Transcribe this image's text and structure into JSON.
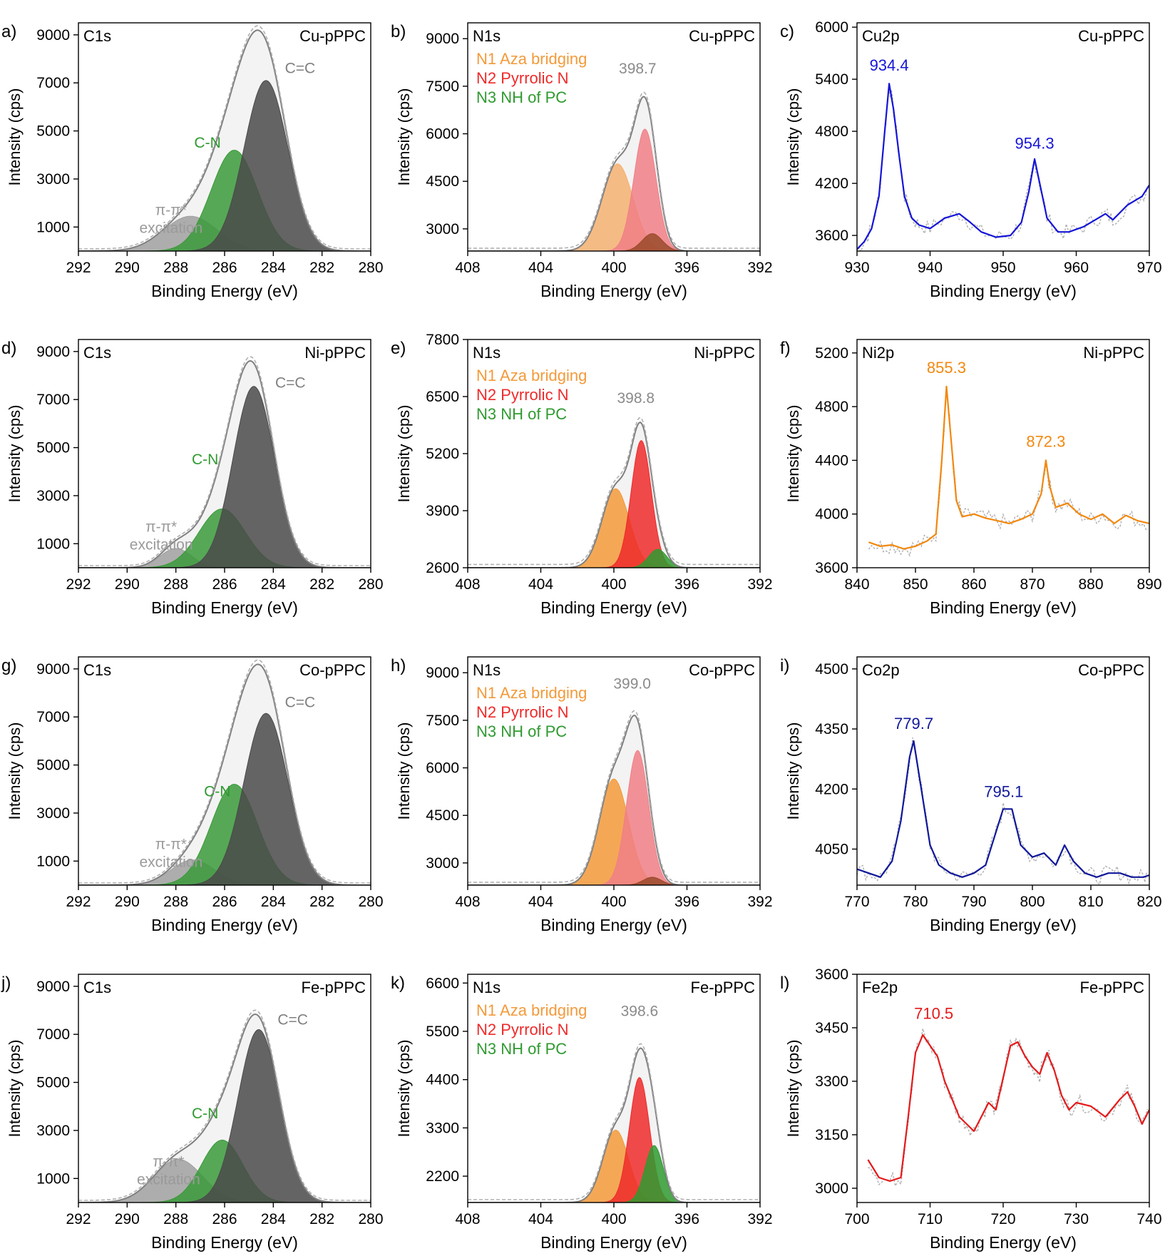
{
  "figure": {
    "colors": {
      "gray_dark": "#4a4a4a",
      "gray_light": "#9a9a9a",
      "green": "#2f9a30",
      "orange": "#f39a3a",
      "red": "#ee2a2a",
      "pink": "#f07f86",
      "blue": "#1515d8",
      "navy": "#10189a",
      "orange_line": "#f2880f",
      "red_line": "#e51a1a",
      "envelope": "#808080",
      "raw": "#b0b0b0"
    }
  },
  "chart_data": [
    {
      "type": "area",
      "panel_label": "a)",
      "title": "C1s",
      "sample": "Cu-pPPC",
      "xlabel": "Binding Energy (eV)",
      "ylabel": "Intensity (cps)",
      "xlim": [
        292,
        280
      ],
      "ylim": [
        0,
        9500
      ],
      "xticks": [
        "292",
        "290",
        "288",
        "286",
        "284",
        "282",
        "280"
      ],
      "yticks": [
        "1000",
        "3000",
        "5000",
        "7000",
        "9000"
      ],
      "baseline": 0,
      "components": [
        {
          "center": 287.4,
          "height": 1450,
          "width": 1.1,
          "color": "#a0a0a0"
        },
        {
          "center": 285.6,
          "height": 4200,
          "width": 0.95,
          "color": "#3a9a3a"
        },
        {
          "center": 284.3,
          "height": 7100,
          "width": 0.9,
          "color": "#4a4a4a"
        }
      ],
      "annotations": [
        {
          "text": "C=C",
          "x": 282.9,
          "y": 7400,
          "color": "#808080"
        },
        {
          "text": "C-N",
          "x": 286.7,
          "y": 4300,
          "color": "#2f9a30"
        },
        {
          "text": "π-π*",
          "x": 288.2,
          "y": 1500,
          "color": "#9a9a9a"
        },
        {
          "text": "excitation",
          "x": 288.2,
          "y": 750,
          "color": "#9a9a9a"
        }
      ]
    },
    {
      "type": "area",
      "panel_label": "b)",
      "title": "N1s",
      "sample": "Cu-pPPC",
      "xlabel": "Binding Energy (eV)",
      "ylabel": "Intensity (cps)",
      "xlim": [
        408,
        392
      ],
      "ylim": [
        2300,
        9500
      ],
      "xticks": [
        "408",
        "404",
        "400",
        "396",
        "392"
      ],
      "yticks": [
        "3000",
        "4500",
        "6000",
        "7500",
        "9000"
      ],
      "baseline": 2300,
      "components": [
        {
          "center": 399.8,
          "height": 2750,
          "width": 0.85,
          "color": "#f5b070"
        },
        {
          "center": 398.3,
          "height": 3850,
          "width": 0.6,
          "color": "#f07f86"
        },
        {
          "center": 397.9,
          "height": 550,
          "width": 0.55,
          "color": "#9a4a2a"
        }
      ],
      "legend": [
        {
          "text": "N1 Aza bridging",
          "color": "#f39a3a"
        },
        {
          "text": "N2 Pyrrolic N",
          "color": "#ee2a2a"
        },
        {
          "text": "N3 NH of PC",
          "color": "#2f9a30"
        }
      ],
      "peak_label": {
        "text": "398.7",
        "x": 398.7,
        "y": 7900,
        "color": "#8a8a8a"
      }
    },
    {
      "type": "line",
      "panel_label": "c)",
      "title": "Cu2p",
      "sample": "Cu-pPPC",
      "xlabel": "Binding Energy (eV)",
      "ylabel": "Intensity (cps)",
      "xlim": [
        930,
        970
      ],
      "ylim": [
        3420,
        6050
      ],
      "xticks": [
        "930",
        "940",
        "950",
        "960",
        "970"
      ],
      "yticks": [
        "3600",
        "4200",
        "4800",
        "5400",
        "6000"
      ],
      "color": "#1515d8",
      "x": [
        930,
        931,
        932,
        933,
        933.8,
        934.4,
        935,
        935.8,
        936.5,
        937.5,
        938.5,
        940,
        942,
        944,
        945.5,
        947,
        949,
        951,
        952.5,
        953.5,
        954.3,
        955,
        956,
        957.5,
        959,
        961,
        963,
        964,
        965,
        967,
        969,
        970
      ],
      "values": [
        3440,
        3530,
        3680,
        4050,
        4800,
        5350,
        5050,
        4500,
        4050,
        3800,
        3720,
        3680,
        3800,
        3850,
        3750,
        3640,
        3580,
        3600,
        3750,
        4100,
        4480,
        4200,
        3800,
        3640,
        3640,
        3700,
        3800,
        3850,
        3780,
        3950,
        4050,
        4180
      ],
      "peak_labels": [
        {
          "text": "934.4",
          "x": 934.4,
          "y": 5500
        },
        {
          "text": "954.3",
          "x": 954.3,
          "y": 4600
        }
      ]
    },
    {
      "type": "area",
      "panel_label": "d)",
      "title": "C1s",
      "sample": "Ni-pPPC",
      "xlabel": "Binding Energy (eV)",
      "ylabel": "Intensity (cps)",
      "xlim": [
        292,
        280
      ],
      "ylim": [
        0,
        9500
      ],
      "xticks": [
        "292",
        "290",
        "288",
        "286",
        "284",
        "282",
        "280"
      ],
      "yticks": [
        "1000",
        "3000",
        "5000",
        "7000",
        "9000"
      ],
      "baseline": 0,
      "components": [
        {
          "center": 288.0,
          "height": 800,
          "width": 0.65,
          "color": "#a0a0a0"
        },
        {
          "center": 286.1,
          "height": 2450,
          "width": 0.95,
          "color": "#3a9a3a"
        },
        {
          "center": 284.8,
          "height": 7550,
          "width": 0.85,
          "color": "#4a4a4a"
        }
      ],
      "annotations": [
        {
          "text": "C=C",
          "x": 283.3,
          "y": 7500,
          "color": "#808080"
        },
        {
          "text": "C-N",
          "x": 286.8,
          "y": 4300,
          "color": "#2f9a30"
        },
        {
          "text": "π-π*",
          "x": 288.6,
          "y": 1500,
          "color": "#9a9a9a"
        },
        {
          "text": "excitation",
          "x": 288.6,
          "y": 750,
          "color": "#9a9a9a"
        }
      ]
    },
    {
      "type": "area",
      "panel_label": "e)",
      "title": "N1s",
      "sample": "Ni-pPPC",
      "xlabel": "Binding Energy (eV)",
      "ylabel": "Intensity (cps)",
      "xlim": [
        408,
        392
      ],
      "ylim": [
        2600,
        7800
      ],
      "xticks": [
        "408",
        "404",
        "400",
        "396",
        "392"
      ],
      "yticks": [
        "2600",
        "3900",
        "5200",
        "6500",
        "7800"
      ],
      "baseline": 2600,
      "components": [
        {
          "center": 399.9,
          "height": 1800,
          "width": 0.75,
          "color": "#f39a3a"
        },
        {
          "center": 398.5,
          "height": 2900,
          "width": 0.55,
          "color": "#ee2a2a"
        },
        {
          "center": 397.6,
          "height": 420,
          "width": 0.5,
          "color": "#2f9a30"
        }
      ],
      "legend": [
        {
          "text": "N1 Aza bridging",
          "color": "#f39a3a"
        },
        {
          "text": "N2 Pyrrolic N",
          "color": "#ee2a2a"
        },
        {
          "text": "N3 NH of PC",
          "color": "#2f9a30"
        }
      ],
      "peak_label": {
        "text": "398.8",
        "x": 398.8,
        "y": 6350,
        "color": "#8a8a8a"
      }
    },
    {
      "type": "line",
      "panel_label": "f)",
      "title": "Ni2p",
      "sample": "Ni-pPPC",
      "xlabel": "Binding Energy (eV)",
      "ylabel": "Intensity (cps)",
      "xlim": [
        840,
        890
      ],
      "ylim": [
        3600,
        5300
      ],
      "xticks": [
        "840",
        "850",
        "860",
        "870",
        "880",
        "890"
      ],
      "yticks": [
        "3600",
        "4000",
        "4400",
        "4800",
        "5200"
      ],
      "color": "#f2880f",
      "x": [
        842,
        844,
        846,
        848,
        850,
        852,
        853.5,
        854.5,
        855.3,
        856,
        857,
        858,
        860,
        862,
        864,
        866,
        868,
        870,
        871.5,
        872.3,
        873,
        874,
        876,
        878,
        880,
        882,
        884,
        886,
        888,
        890
      ],
      "values": [
        3790,
        3760,
        3770,
        3740,
        3760,
        3800,
        3850,
        4400,
        4950,
        4600,
        4100,
        3980,
        4000,
        3970,
        3950,
        3930,
        3960,
        4000,
        4150,
        4400,
        4200,
        4050,
        4080,
        4000,
        3960,
        4000,
        3930,
        3990,
        3950,
        3930
      ],
      "peak_labels": [
        {
          "text": "855.3",
          "x": 855.3,
          "y": 5050
        },
        {
          "text": "872.3",
          "x": 872.3,
          "y": 4500
        }
      ]
    },
    {
      "type": "area",
      "panel_label": "g)",
      "title": "C1s",
      "sample": "Co-pPPC",
      "xlabel": "Binding Energy (eV)",
      "ylabel": "Intensity (cps)",
      "xlim": [
        292,
        280
      ],
      "ylim": [
        0,
        9500
      ],
      "xticks": [
        "292",
        "290",
        "288",
        "286",
        "284",
        "282",
        "280"
      ],
      "yticks": [
        "1000",
        "3000",
        "5000",
        "7000",
        "9000"
      ],
      "baseline": 0,
      "components": [
        {
          "center": 287.3,
          "height": 1050,
          "width": 0.9,
          "color": "#a0a0a0"
        },
        {
          "center": 285.6,
          "height": 4200,
          "width": 0.95,
          "color": "#3a9a3a"
        },
        {
          "center": 284.3,
          "height": 7150,
          "width": 0.9,
          "color": "#4a4a4a"
        }
      ],
      "annotations": [
        {
          "text": "C=C",
          "x": 282.9,
          "y": 7400,
          "color": "#808080"
        },
        {
          "text": "C-N",
          "x": 286.3,
          "y": 3700,
          "color": "#2f9a30"
        },
        {
          "text": "π-π*",
          "x": 288.2,
          "y": 1500,
          "color": "#9a9a9a"
        },
        {
          "text": "excitation",
          "x": 288.2,
          "y": 750,
          "color": "#9a9a9a"
        }
      ]
    },
    {
      "type": "area",
      "panel_label": "h)",
      "title": "N1s",
      "sample": "Co-pPPC",
      "xlabel": "Binding Energy (eV)",
      "ylabel": "Intensity (cps)",
      "xlim": [
        408,
        392
      ],
      "ylim": [
        2300,
        9500
      ],
      "xticks": [
        "408",
        "404",
        "400",
        "396",
        "392"
      ],
      "yticks": [
        "3000",
        "4500",
        "6000",
        "7500",
        "9000"
      ],
      "baseline": 2300,
      "components": [
        {
          "center": 400.0,
          "height": 3350,
          "width": 0.8,
          "color": "#f39a3a"
        },
        {
          "center": 398.7,
          "height": 4250,
          "width": 0.6,
          "color": "#f07f86"
        },
        {
          "center": 397.9,
          "height": 250,
          "width": 0.5,
          "color": "#9a4a2a"
        }
      ],
      "legend": [
        {
          "text": "N1 Aza bridging",
          "color": "#f39a3a"
        },
        {
          "text": "N2 Pyrrolic N",
          "color": "#ee2a2a"
        },
        {
          "text": "N3 NH of PC",
          "color": "#2f9a30"
        }
      ],
      "peak_label": {
        "text": "399.0",
        "x": 399.0,
        "y": 8500,
        "color": "#8a8a8a"
      }
    },
    {
      "type": "line",
      "panel_label": "i)",
      "title": "Co2p",
      "sample": "Co-pPPC",
      "xlabel": "Binding Energy (eV)",
      "ylabel": "Intensity (cps)",
      "xlim": [
        770,
        820
      ],
      "ylim": [
        3960,
        4530
      ],
      "xticks": [
        "770",
        "780",
        "790",
        "800",
        "810",
        "820"
      ],
      "yticks": [
        "4050",
        "4200",
        "4350",
        "4500"
      ],
      "color": "#10189a",
      "x": [
        770,
        772,
        774,
        776,
        777.5,
        779,
        779.7,
        781,
        782.5,
        784,
        786,
        788,
        790,
        792,
        793.5,
        795,
        796.5,
        798,
        800,
        802,
        804,
        805.5,
        807,
        809,
        811,
        813,
        815,
        817,
        819,
        820
      ],
      "values": [
        4000,
        3990,
        3980,
        4020,
        4120,
        4280,
        4320,
        4200,
        4060,
        4010,
        3990,
        3980,
        3990,
        4010,
        4080,
        4150,
        4150,
        4060,
        4030,
        4040,
        4010,
        4060,
        4020,
        3990,
        3980,
        3990,
        3990,
        3980,
        3980,
        3985
      ],
      "peak_labels": [
        {
          "text": "779.7",
          "x": 779.7,
          "y": 4350
        },
        {
          "text": "795.1",
          "x": 795.1,
          "y": 4180
        }
      ]
    },
    {
      "type": "area",
      "panel_label": "j)",
      "title": "C1s",
      "sample": "Fe-pPPC",
      "xlabel": "Binding Energy (eV)",
      "ylabel": "Intensity (cps)",
      "xlim": [
        292,
        280
      ],
      "ylim": [
        0,
        9500
      ],
      "xticks": [
        "292",
        "290",
        "288",
        "286",
        "284",
        "282",
        "280"
      ],
      "yticks": [
        "1000",
        "3000",
        "5000",
        "7000",
        "9000"
      ],
      "baseline": 0,
      "components": [
        {
          "center": 287.9,
          "height": 1800,
          "width": 1.0,
          "color": "#a0a0a0"
        },
        {
          "center": 286.1,
          "height": 2600,
          "width": 0.85,
          "color": "#3a9a3a"
        },
        {
          "center": 284.6,
          "height": 7200,
          "width": 0.85,
          "color": "#4a4a4a"
        }
      ],
      "annotations": [
        {
          "text": "C=C",
          "x": 283.2,
          "y": 7400,
          "color": "#808080"
        },
        {
          "text": "C-N",
          "x": 286.8,
          "y": 3500,
          "color": "#2f9a30"
        },
        {
          "text": "π-π*",
          "x": 288.3,
          "y": 1500,
          "color": "#9a9a9a"
        },
        {
          "text": "excitation",
          "x": 288.3,
          "y": 750,
          "color": "#9a9a9a"
        }
      ]
    },
    {
      "type": "area",
      "panel_label": "k)",
      "title": "N1s",
      "sample": "Fe-pPPC",
      "xlabel": "Binding Energy (eV)",
      "ylabel": "Intensity (cps)",
      "xlim": [
        408,
        392
      ],
      "ylim": [
        1600,
        6800
      ],
      "xticks": [
        "408",
        "404",
        "400",
        "396",
        "392"
      ],
      "yticks": [
        "2200",
        "3300",
        "4400",
        "5500",
        "6600"
      ],
      "baseline": 1600,
      "components": [
        {
          "center": 399.9,
          "height": 1650,
          "width": 0.7,
          "color": "#f39a3a"
        },
        {
          "center": 398.6,
          "height": 2850,
          "width": 0.55,
          "color": "#ee2a2a"
        },
        {
          "center": 397.8,
          "height": 1300,
          "width": 0.5,
          "color": "#2f9a30"
        }
      ],
      "legend": [
        {
          "text": "N1 Aza bridging",
          "color": "#f39a3a"
        },
        {
          "text": "N2 Pyrrolic N",
          "color": "#ee2a2a"
        },
        {
          "text": "N3 NH of PC",
          "color": "#2f9a30"
        }
      ],
      "peak_label": {
        "text": "398.6",
        "x": 398.6,
        "y": 5850,
        "color": "#8a8a8a"
      }
    },
    {
      "type": "line",
      "panel_label": "l)",
      "title": "Fe2p",
      "sample": "Fe-pPPC",
      "xlabel": "Binding Energy (eV)",
      "ylabel": "Intensity (cps)",
      "xlim": [
        700,
        740
      ],
      "ylim": [
        2960,
        3600
      ],
      "xticks": [
        "700",
        "710",
        "720",
        "730",
        "740"
      ],
      "yticks": [
        "3000",
        "3150",
        "3300",
        "3450",
        "3600"
      ],
      "color": "#e51a1a",
      "x": [
        701.5,
        703,
        704.5,
        706,
        707,
        708,
        709,
        710,
        711,
        712,
        713,
        714,
        715,
        716,
        717,
        718,
        719,
        720,
        721,
        722,
        723,
        724,
        725,
        726,
        727,
        728,
        729,
        730,
        732,
        734,
        736,
        737,
        738,
        739,
        740
      ],
      "values": [
        3080,
        3030,
        3020,
        3030,
        3200,
        3380,
        3430,
        3400,
        3370,
        3300,
        3250,
        3200,
        3180,
        3160,
        3200,
        3240,
        3220,
        3310,
        3400,
        3410,
        3370,
        3340,
        3320,
        3380,
        3330,
        3260,
        3220,
        3240,
        3230,
        3200,
        3250,
        3270,
        3230,
        3180,
        3220
      ],
      "peak_labels": [
        {
          "text": "710.5",
          "x": 710.5,
          "y": 3475
        }
      ]
    }
  ]
}
